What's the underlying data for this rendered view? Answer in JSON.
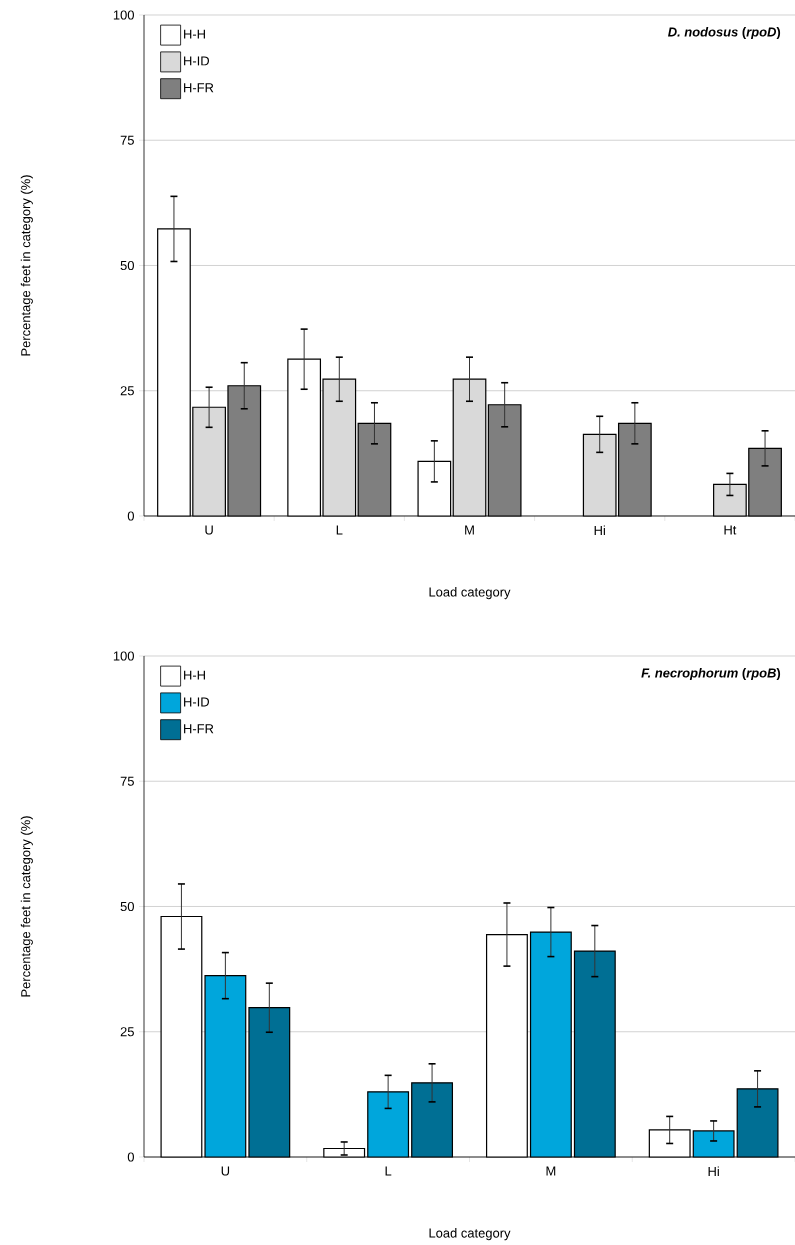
{
  "chart_data": [
    {
      "type": "bar",
      "title": "*D. nodosus* (*rpoD*)",
      "xlabel": "Load category",
      "ylabel": "Percentage feet in category (%)",
      "categories": [
        "U",
        "L",
        "M",
        "Hi",
        "Ht"
      ],
      "series": [
        {
          "name": "H-H",
          "color": "#ffffff",
          "values": [
            57.3,
            31.3,
            10.9,
            null,
            null
          ],
          "errors": [
            6.5,
            6,
            4.1,
            null,
            null
          ]
        },
        {
          "name": "H-ID",
          "color": "#d9d9d9",
          "values": [
            21.7,
            27.3,
            27.3,
            16.3,
            6.3
          ],
          "errors": [
            4,
            4.4,
            4.4,
            3.6,
            2.2
          ]
        },
        {
          "name": "H-FR",
          "color": "#7f7f7f",
          "values": [
            26,
            18.5,
            22.2,
            18.5,
            13.5
          ],
          "errors": [
            4.6,
            4.1,
            4.4,
            4.1,
            3.5
          ]
        }
      ],
      "ylim": [
        0,
        100
      ],
      "yticks": [
        0,
        25,
        50,
        75,
        100
      ],
      "grid": "y",
      "legend": "top left"
    },
    {
      "type": "bar",
      "title": "*F. necrophorum* (*rpoB*)",
      "xlabel": "Load category",
      "ylabel": "Percentage feet in category (%)",
      "categories": [
        "U",
        "L",
        "M",
        "Hi"
      ],
      "series": [
        {
          "name": "H-H",
          "color": "#ffffff",
          "values": [
            48,
            1.7,
            44.4,
            5.4
          ],
          "errors": [
            6.5,
            1.3,
            6.3,
            2.7
          ]
        },
        {
          "name": "H-ID",
          "color": "#00a6dc",
          "values": [
            36.2,
            13,
            44.9,
            5.2
          ],
          "errors": [
            4.6,
            3.3,
            4.9,
            2
          ]
        },
        {
          "name": "H-FR",
          "color": "#006f94",
          "values": [
            29.8,
            14.8,
            41.1,
            13.6
          ],
          "errors": [
            4.9,
            3.8,
            5.1,
            3.6
          ]
        }
      ],
      "ylim": [
        0,
        100
      ],
      "yticks": [
        0,
        25,
        50,
        75,
        100
      ],
      "grid": "y",
      "legend": "top left"
    }
  ]
}
